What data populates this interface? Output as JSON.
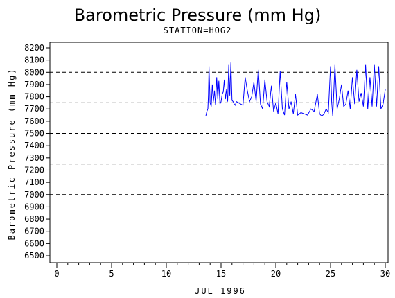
{
  "chart_data": {
    "type": "line",
    "title": "Barometric Pressure (mm Hg)",
    "subtitle": "STATION=HOG2",
    "xlabel": "JUL 1996",
    "ylabel": "Barometric Pressure (mm Hg)",
    "xlim": [
      0,
      30
    ],
    "ylim": [
      6500,
      8200
    ],
    "x_ticks": [
      0,
      5,
      10,
      15,
      20,
      25,
      30
    ],
    "y_ticks": [
      6500,
      6600,
      6700,
      6800,
      6900,
      7000,
      7100,
      7200,
      7300,
      7400,
      7500,
      7600,
      7700,
      7800,
      7900,
      8000,
      8100,
      8200
    ],
    "reference_lines": [
      7000,
      7250,
      7500,
      7750,
      8000
    ],
    "colors": {
      "series": "#0000ff",
      "axis": "#000000"
    },
    "series": [
      {
        "x": [
          13.6,
          13.7,
          13.8,
          13.85,
          13.9,
          14.0,
          14.1,
          14.2,
          14.3,
          14.4,
          14.5,
          14.6,
          14.7,
          14.8,
          14.9,
          15.0,
          15.1,
          15.2,
          15.3,
          15.4,
          15.5,
          15.6,
          15.7,
          15.8,
          15.9,
          16.0,
          16.1,
          16.2,
          16.3,
          16.4,
          16.6,
          16.8,
          17.0,
          17.2,
          17.4,
          17.6,
          17.8,
          18.0,
          18.2,
          18.4,
          18.6,
          18.8,
          19.0,
          19.2,
          19.4,
          19.6,
          19.8,
          20.0,
          20.2,
          20.4,
          20.6,
          20.8,
          21.0,
          21.2,
          21.4,
          21.6,
          21.8,
          22.0,
          22.3,
          22.6,
          22.9,
          23.2,
          23.5,
          23.8,
          24.0,
          24.2,
          24.4,
          24.6,
          24.8,
          25.0,
          25.1,
          25.2,
          25.4,
          25.6,
          25.8,
          26.0,
          26.2,
          26.4,
          26.6,
          26.8,
          27.0,
          27.2,
          27.4,
          27.6,
          27.8,
          28.0,
          28.2,
          28.4,
          28.6,
          28.8,
          29.0,
          29.2,
          29.4,
          29.6,
          29.8,
          30.0
        ],
        "y": [
          7640,
          7680,
          7700,
          7820,
          8050,
          7750,
          7720,
          7900,
          7760,
          7850,
          7730,
          7960,
          7780,
          7930,
          7740,
          7760,
          7820,
          7840,
          7940,
          7780,
          7860,
          7760,
          8060,
          7810,
          8080,
          7770,
          7760,
          7740,
          7730,
          7760,
          7750,
          7740,
          7730,
          7960,
          7850,
          7760,
          7800,
          7920,
          7760,
          8020,
          7740,
          7700,
          7940,
          7760,
          7720,
          7890,
          7680,
          7750,
          7660,
          8010,
          7700,
          7650,
          7920,
          7700,
          7760,
          7660,
          7820,
          7650,
          7670,
          7660,
          7650,
          7700,
          7680,
          7820,
          7660,
          7640,
          7660,
          7700,
          7670,
          8050,
          7760,
          7640,
          8060,
          7700,
          7780,
          7900,
          7720,
          7740,
          7850,
          7700,
          7960,
          7740,
          8020,
          7760,
          7830,
          7720,
          8060,
          7700,
          7960,
          7720,
          8060,
          7720,
          8050,
          7700,
          7740,
          7860
        ]
      }
    ]
  }
}
